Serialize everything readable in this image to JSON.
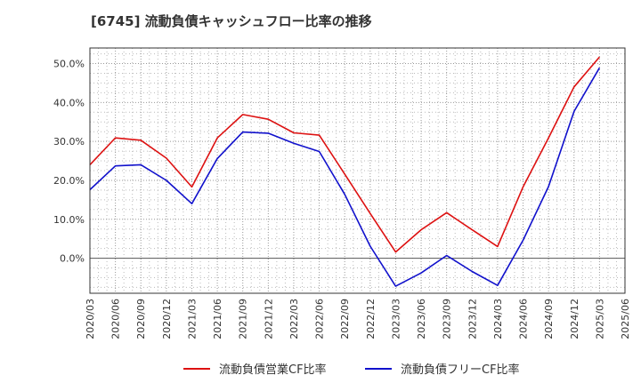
{
  "chart_data": {
    "type": "line",
    "title": "[6745]  流動負債キャッシュフロー比率の推移",
    "xlabel": "",
    "ylabel": "",
    "x": [
      "2020/03",
      "2020/06",
      "2020/09",
      "2020/12",
      "2021/03",
      "2021/06",
      "2021/09",
      "2021/12",
      "2022/03",
      "2022/06",
      "2022/09",
      "2022/12",
      "2023/03",
      "2023/06",
      "2023/09",
      "2023/12",
      "2024/03",
      "2024/06",
      "2024/09",
      "2024/12",
      "2025/03"
    ],
    "x_ticks": [
      "2020/03",
      "2020/06",
      "2020/09",
      "2020/12",
      "2021/03",
      "2021/06",
      "2021/09",
      "2021/12",
      "2022/03",
      "2022/06",
      "2022/09",
      "2022/12",
      "2023/03",
      "2023/06",
      "2023/09",
      "2023/12",
      "2024/03",
      "2024/06",
      "2024/09",
      "2024/12",
      "2025/03",
      "2025/06"
    ],
    "y_ticks": [
      0,
      10,
      20,
      30,
      40,
      50
    ],
    "y_tick_labels": [
      "0.0%",
      "10.0%",
      "20.0%",
      "30.0%",
      "40.0%",
      "50.0%"
    ],
    "ylim": [
      -9,
      54
    ],
    "grid": true,
    "legend_position": "bottom",
    "series": [
      {
        "name": "流動負債営業CF比率",
        "color": "#dd1111",
        "values": [
          24.0,
          30.9,
          30.3,
          25.7,
          18.3,
          30.9,
          36.9,
          35.7,
          32.2,
          31.6,
          21.6,
          11.5,
          1.6,
          7.3,
          11.7,
          7.3,
          3.0,
          18.3,
          30.9,
          44.0,
          51.7
        ]
      },
      {
        "name": "流動負債フリーCF比率",
        "color": "#1111cc",
        "values": [
          17.6,
          23.7,
          24.0,
          20.0,
          14.0,
          25.6,
          32.4,
          32.1,
          29.5,
          27.4,
          16.4,
          3.1,
          -7.2,
          -3.8,
          0.7,
          -3.4,
          -7.0,
          4.6,
          18.4,
          37.7,
          48.9
        ]
      }
    ]
  }
}
